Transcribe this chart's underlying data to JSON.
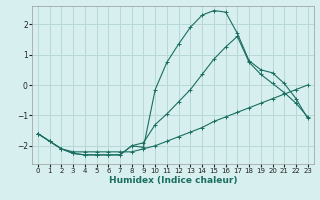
{
  "xlabel": "Humidex (Indice chaleur)",
  "bg_color": "#d7efef",
  "grid_color": "#b8d8d8",
  "line_color": "#1a6e60",
  "xlim": [
    -0.5,
    23.5
  ],
  "ylim": [
    -2.6,
    2.6
  ],
  "yticks": [
    -2,
    -1,
    0,
    1,
    2
  ],
  "xticks": [
    0,
    1,
    2,
    3,
    4,
    5,
    6,
    7,
    8,
    9,
    10,
    11,
    12,
    13,
    14,
    15,
    16,
    17,
    18,
    19,
    20,
    21,
    22,
    23
  ],
  "series1_x": [
    0,
    1,
    2,
    3,
    4,
    5,
    6,
    7,
    8,
    9,
    10,
    11,
    12,
    13,
    14,
    15,
    16,
    17,
    18,
    19,
    20,
    21,
    22,
    23
  ],
  "series1_y": [
    -1.6,
    -1.85,
    -2.1,
    -2.2,
    -2.2,
    -2.2,
    -2.2,
    -2.2,
    -2.2,
    -2.1,
    -2.0,
    -1.85,
    -1.7,
    -1.55,
    -1.4,
    -1.2,
    -1.05,
    -0.9,
    -0.75,
    -0.6,
    -0.45,
    -0.3,
    -0.15,
    0.0
  ],
  "series2_x": [
    0,
    1,
    2,
    3,
    4,
    5,
    6,
    7,
    8,
    9,
    10,
    11,
    12,
    13,
    14,
    15,
    16,
    17,
    18,
    19,
    20,
    21,
    22,
    23
  ],
  "series2_y": [
    -1.6,
    -1.85,
    -2.1,
    -2.25,
    -2.3,
    -2.3,
    -2.3,
    -2.3,
    -2.0,
    -1.9,
    -1.3,
    -0.95,
    -0.55,
    -0.15,
    0.35,
    0.85,
    1.25,
    1.6,
    0.75,
    0.35,
    0.05,
    -0.25,
    -0.6,
    -1.05
  ],
  "series3_x": [
    0,
    1,
    2,
    3,
    4,
    5,
    6,
    7,
    8,
    9,
    10,
    11,
    12,
    13,
    14,
    15,
    16,
    17,
    18,
    19,
    20,
    21,
    22,
    23
  ],
  "series3_y": [
    -1.6,
    -1.85,
    -2.1,
    -2.25,
    -2.3,
    -2.3,
    -2.3,
    -2.3,
    -2.0,
    -2.05,
    -0.15,
    0.75,
    1.35,
    1.9,
    2.3,
    2.45,
    2.4,
    1.7,
    0.8,
    0.5,
    0.4,
    0.05,
    -0.45,
    -1.1
  ]
}
